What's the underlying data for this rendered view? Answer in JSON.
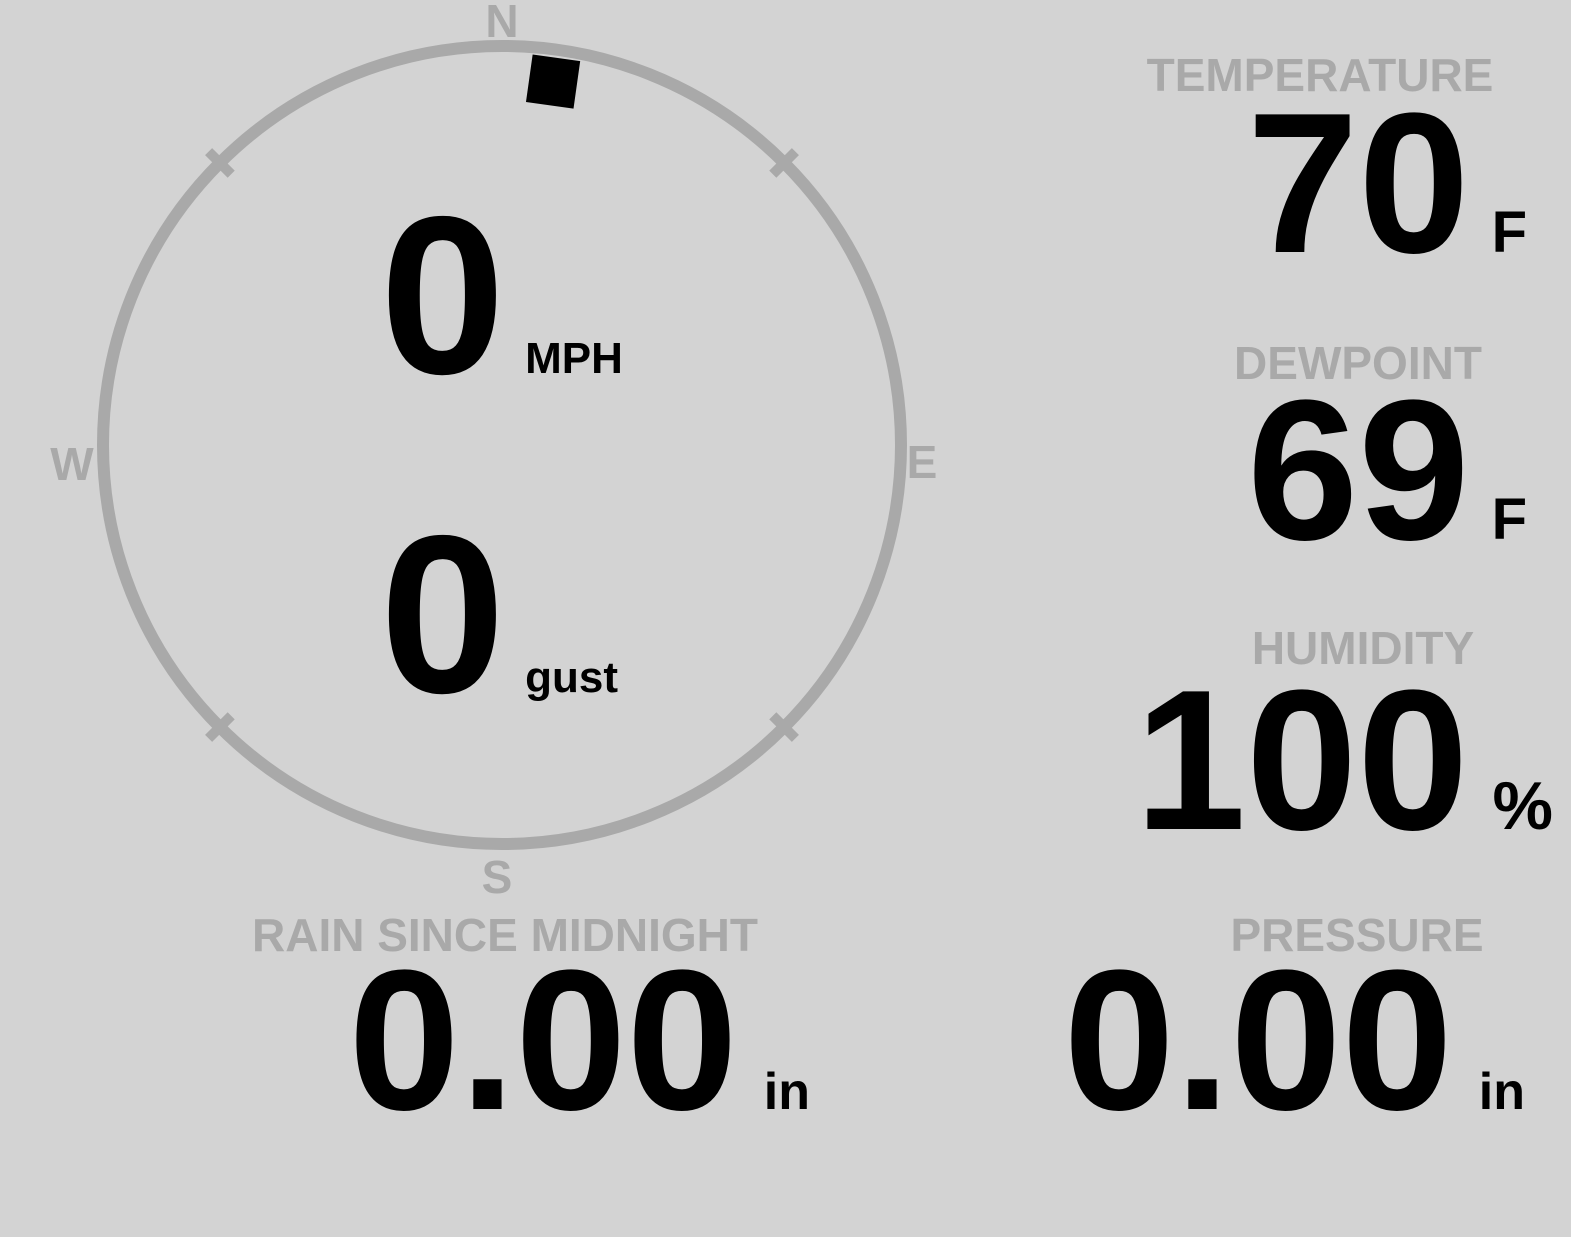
{
  "colors": {
    "background": "#d3d3d3",
    "muted": "#a9a9a9",
    "ink": "#000000"
  },
  "wind": {
    "direction_deg": 8,
    "compass": {
      "north": "N",
      "east": "E",
      "south": "S",
      "west": "W"
    },
    "speed": {
      "value": "0",
      "unit": "MPH"
    },
    "gust": {
      "value": "0",
      "unit": "gust"
    }
  },
  "stats": {
    "temperature": {
      "label": "TEMPERATURE",
      "value": "70",
      "unit": "F"
    },
    "dewpoint": {
      "label": "DEWPOINT",
      "value": "69",
      "unit": "F"
    },
    "humidity": {
      "label": "HUMIDITY",
      "value": "100",
      "unit": "%"
    },
    "rain": {
      "label": "RAIN SINCE MIDNIGHT",
      "value": "0.00",
      "unit": "in"
    },
    "pressure": {
      "label": "PRESSURE",
      "value": "0.00",
      "unit": "in"
    }
  }
}
